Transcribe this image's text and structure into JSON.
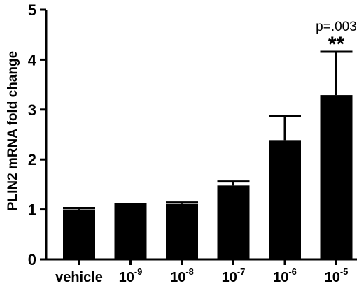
{
  "chart_data": {
    "type": "bar",
    "categories": [
      {
        "base": "vehicle",
        "exp": ""
      },
      {
        "base": "10",
        "exp": "-9"
      },
      {
        "base": "10",
        "exp": "-8"
      },
      {
        "base": "10",
        "exp": "-7"
      },
      {
        "base": "10",
        "exp": "-6"
      },
      {
        "base": "10",
        "exp": "-5"
      }
    ],
    "values": [
      1.0,
      1.07,
      1.11,
      1.48,
      2.39,
      3.29
    ],
    "errors": [
      0.03,
      0.03,
      0.03,
      0.08,
      0.48,
      0.87
    ],
    "ylabel": "PLIN2 mRNA fold change",
    "xlabel": "",
    "ylim": [
      0,
      5
    ],
    "yticks": [
      0,
      1,
      2,
      3,
      4,
      5
    ],
    "bar_color": "#000000",
    "grid": false,
    "annotations": [
      {
        "category_index": 5,
        "text": "p=.003"
      },
      {
        "category_index": 5,
        "text": "**"
      }
    ]
  }
}
